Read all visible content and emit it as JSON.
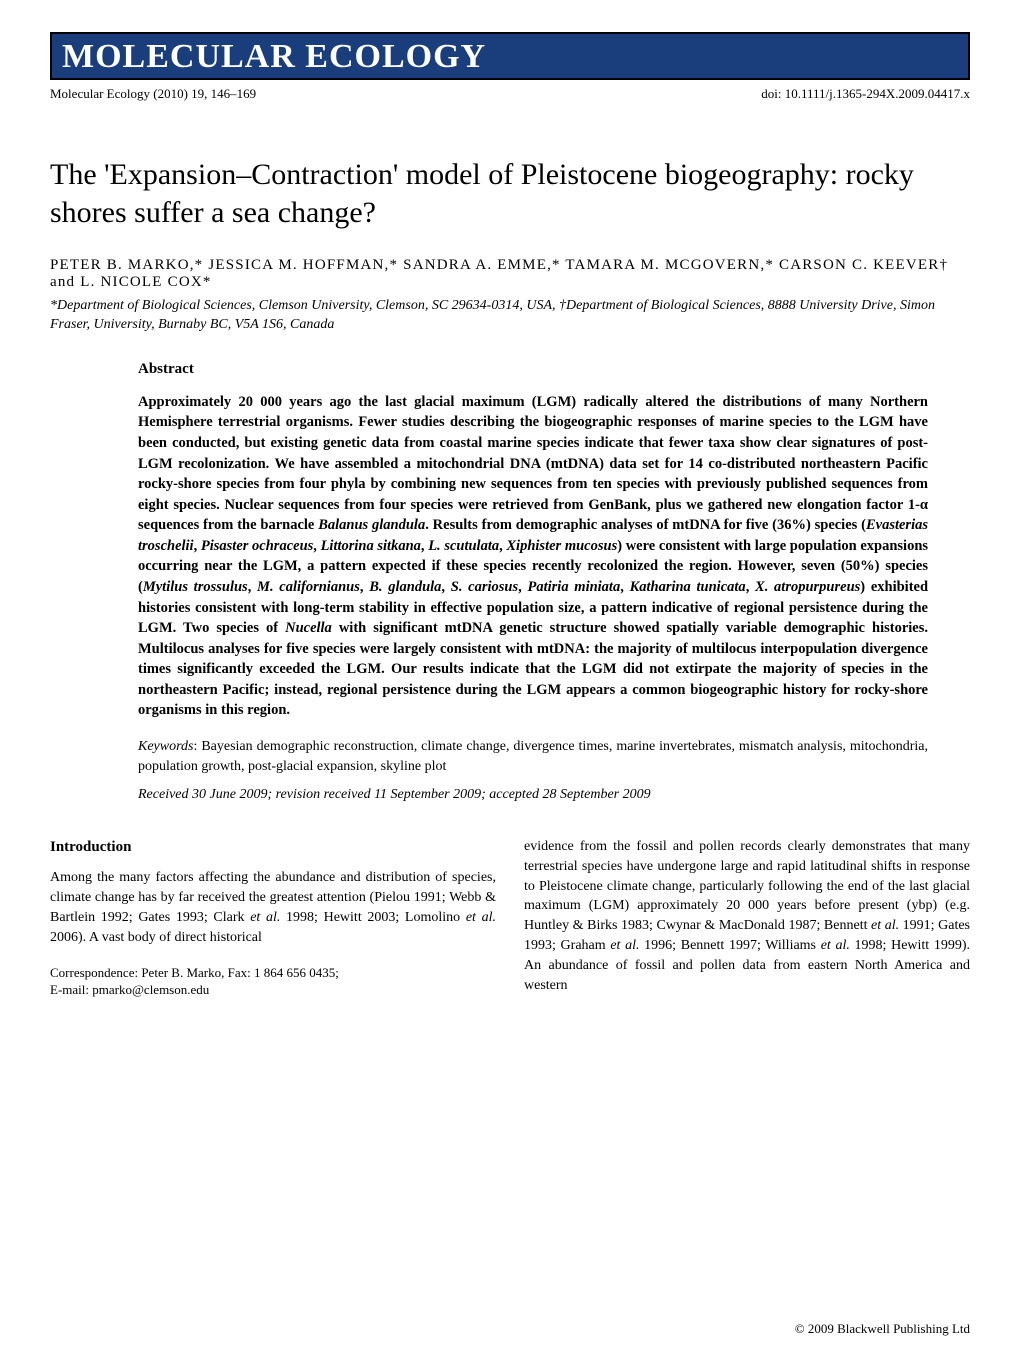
{
  "journal": {
    "banner_title": "MOLECULAR ECOLOGY",
    "citation": "Molecular Ecology (2010) 19, 146–169",
    "doi": "doi: 10.1111/j.1365-294X.2009.04417.x",
    "banner_bg": "#1a3d7c",
    "banner_text_color": "#ffffff",
    "banner_border": "#000000"
  },
  "article": {
    "title": "The 'Expansion–Contraction' model of Pleistocene biogeography: rocky shores suffer a sea change?",
    "authors": "PETER B. MARKO,* JESSICA M. HOFFMAN,* SANDRA A. EMME,* TAMARA M. MCGOVERN,* CARSON C. KEEVER† and L. NICOLE COX*",
    "affiliations": "*Department of Biological Sciences, Clemson University, Clemson, SC 29634-0314, USA, †Department of Biological Sciences, 8888 University Drive, Simon Fraser, University, Burnaby BC, V5A 1S6, Canada"
  },
  "abstract": {
    "heading": "Abstract",
    "text_html": "Approximately 20 000 years ago the last glacial maximum (LGM) radically altered the distributions of many Northern Hemisphere terrestrial organisms. Fewer studies describing the biogeographic responses of marine species to the LGM have been conducted, but existing genetic data from coastal marine species indicate that fewer taxa show clear signatures of post-LGM recolonization. We have assembled a mitochondrial DNA (mtDNA) data set for 14 co-distributed northeastern Pacific rocky-shore species from four phyla by combining new sequences from ten species with previously published sequences from eight species. Nuclear sequences from four species were retrieved from GenBank, plus we gathered new elongation factor 1-α sequences from the barnacle <em>Balanus glandula</em>. Results from demographic analyses of mtDNA for five (36%) species (<em>Evasterias troschelii</em>, <em>Pisaster ochraceus</em>, <em>Littorina sitkana</em>, <em>L. scutulata</em>, <em>Xiphister mucosus</em>) were consistent with large population expansions occurring near the LGM, a pattern expected if these species recently recolonized the region. However, seven (50%) species (<em>Mytilus trossulus</em>, <em>M. californianus</em>, <em>B. glandula</em>, <em>S. cariosus</em>, <em>Patiria miniata</em>, <em>Katharina tunicata</em>, <em>X. atropurpureus</em>) exhibited histories consistent with long-term stability in effective population size, a pattern indicative of regional persistence during the LGM. Two species of <em>Nucella</em> with significant mtDNA genetic structure showed spatially variable demographic histories. Multilocus analyses for five species were largely consistent with mtDNA: the majority of multilocus interpopulation divergence times significantly exceeded the LGM. Our results indicate that the LGM did not extirpate the majority of species in the northeastern Pacific; instead, regional persistence during the LGM appears a common biogeographic history for rocky-shore organisms in this region.",
    "keywords_html": "<em>Keywords</em>: Bayesian demographic reconstruction, climate change, divergence times, marine invertebrates, mismatch analysis, mitochondria, population growth, post-glacial expansion, skyline plot",
    "received": "Received 30 June 2009; revision received 11 September 2009; accepted 28 September 2009"
  },
  "body": {
    "intro_heading": "Introduction",
    "left_html": "Among the many factors affecting the abundance and distribution of species, climate change has by far received the greatest attention (Pielou 1991; Webb & Bartlein 1992; Gates 1993; Clark <em>et al.</em> 1998; Hewitt 2003; Lomolino <em>et al.</em> 2006). A vast body of direct historical",
    "right_html": "evidence from the fossil and pollen records clearly demonstrates that many terrestrial species have undergone large and rapid latitudinal shifts in response to Pleistocene climate change, particularly following the end of the last glacial maximum (LGM) approximately 20 000 years before present (ybp) (e.g. Huntley & Birks 1983; Cwynar & MacDonald 1987; Bennett <em>et al.</em> 1991; Gates 1993; Graham <em>et al.</em> 1996; Bennett 1997; Williams <em>et al.</em> 1998; Hewitt 1999). An abundance of fossil and pollen data from eastern North America and western",
    "correspondence": "Correspondence: Peter B. Marko, Fax: 1 864 656 0435;\nE-mail: pmarko@clemson.edu"
  },
  "footer": {
    "copyright": "© 2009 Blackwell Publishing Ltd"
  },
  "style": {
    "page_bg": "#ffffff",
    "text_color": "#000000",
    "body_fontsize_pt": 14,
    "title_fontsize_pt": 30,
    "banner_fontsize_pt": 34,
    "font_family": "Palatino"
  }
}
